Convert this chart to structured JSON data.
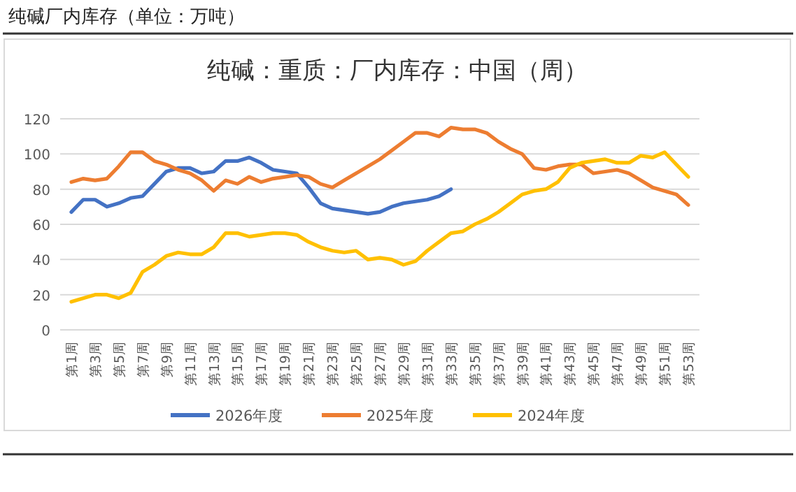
{
  "chart_data": {
    "type": "line",
    "title": "纯碱厂内库存（单位：万吨）",
    "subtitle": "纯碱：重质：厂内库存：中国（周）",
    "categories": [
      "第1周",
      null,
      "第3周",
      null,
      "第5周",
      null,
      "第7周",
      null,
      "第9周",
      null,
      "第11周",
      null,
      "第13周",
      null,
      "第15周",
      null,
      "第17周",
      null,
      "第19周",
      null,
      "第21周",
      null,
      "第23周",
      null,
      "第25周",
      null,
      "第27周",
      null,
      "第29周",
      null,
      "第31周",
      null,
      "第33周",
      null,
      "第35周",
      null,
      "第37周",
      null,
      "第39周",
      null,
      "第41周",
      null,
      "第43周",
      null,
      "第45周",
      null,
      "第47周",
      null,
      "第49周",
      null,
      "第51周",
      null,
      "第53周"
    ],
    "series": [
      {
        "name": "2026年度",
        "color": "#4472c4",
        "values": [
          67,
          74,
          74,
          70,
          72,
          75,
          76,
          83,
          90,
          92,
          92,
          89,
          90,
          96,
          96,
          98,
          95,
          91,
          90,
          89,
          81,
          72,
          69,
          68,
          67,
          66,
          67,
          70,
          72,
          73,
          74,
          76,
          80,
          null,
          null,
          null,
          null,
          null,
          null,
          null,
          null,
          null,
          null,
          null,
          null,
          null,
          null,
          null,
          null,
          null,
          null,
          null,
          null
        ]
      },
      {
        "name": "2025年度",
        "color": "#ed7d31",
        "values": [
          84,
          86,
          85,
          86,
          93,
          101,
          101,
          96,
          94,
          91,
          89,
          85,
          79,
          85,
          83,
          87,
          84,
          86,
          87,
          88,
          87,
          83,
          81,
          85,
          89,
          93,
          97,
          102,
          107,
          112,
          112,
          110,
          115,
          114,
          114,
          112,
          107,
          103,
          100,
          92,
          91,
          93,
          94,
          94,
          89,
          90,
          91,
          89,
          85,
          81,
          79,
          77,
          71
        ]
      },
      {
        "name": "2024年度",
        "color": "#ffc000",
        "values": [
          16,
          18,
          20,
          20,
          18,
          21,
          33,
          37,
          42,
          44,
          43,
          43,
          47,
          55,
          55,
          53,
          54,
          55,
          55,
          54,
          50,
          47,
          45,
          44,
          45,
          40,
          41,
          40,
          37,
          39,
          45,
          50,
          55,
          56,
          60,
          63,
          67,
          72,
          77,
          79,
          80,
          84,
          92,
          95,
          96,
          97,
          95,
          95,
          99,
          98,
          101,
          94,
          87
        ]
      }
    ],
    "ylim": [
      0,
      120
    ],
    "yticks": [
      0,
      20,
      40,
      60,
      80,
      100,
      120
    ],
    "grid": "y",
    "legend": "bottom",
    "marker": "none",
    "line_style": "solid"
  }
}
